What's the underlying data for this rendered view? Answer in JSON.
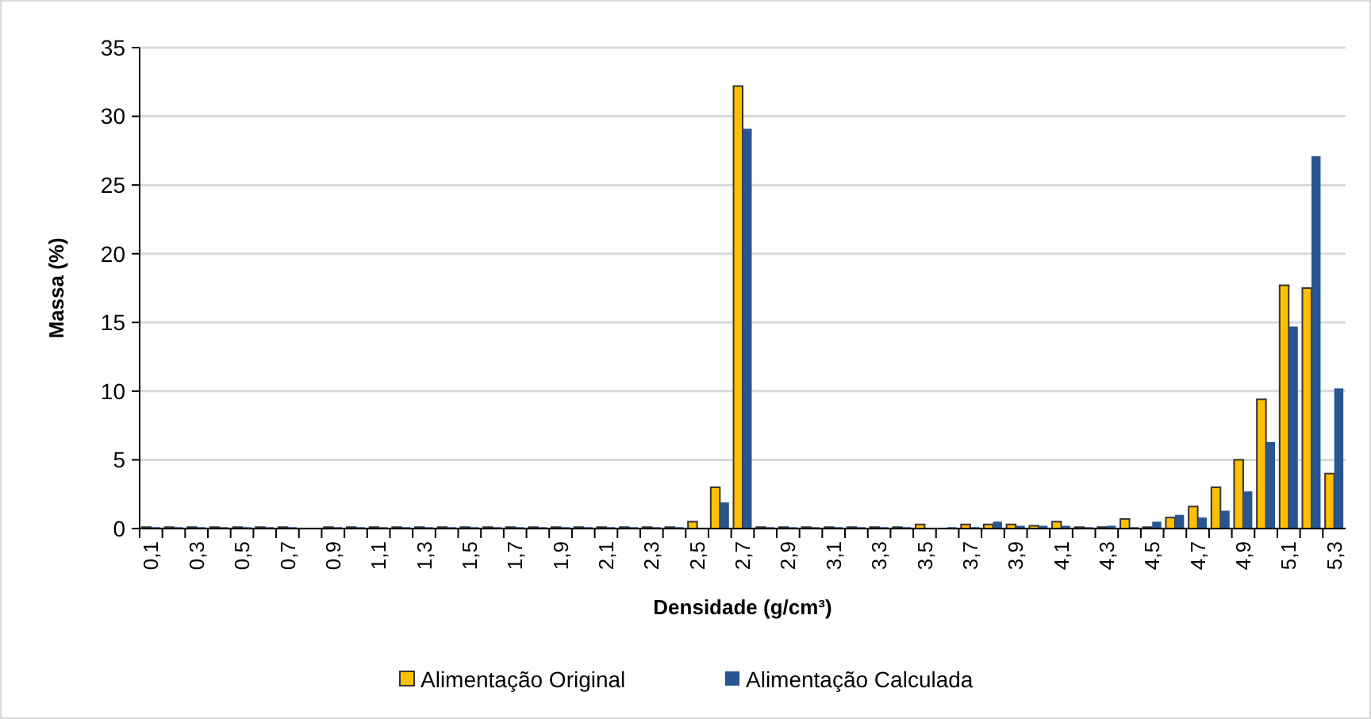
{
  "chart_data": {
    "type": "bar",
    "xlabel": "Densidade (g/cm³)",
    "ylabel": "Massa (%)",
    "categories": [
      "0,1",
      null,
      "0,3",
      null,
      "0,5",
      null,
      "0,7",
      null,
      "0,9",
      null,
      "1,1",
      null,
      "1,3",
      null,
      "1,5",
      null,
      "1,7",
      null,
      "1,9",
      null,
      "2,1",
      null,
      "2,3",
      null,
      "2,5",
      null,
      "2,7",
      null,
      "2,9",
      null,
      "3,1",
      null,
      "3,3",
      null,
      "3,5",
      null,
      "3,7",
      null,
      "3,9",
      null,
      "4,1",
      null,
      "4,3",
      null,
      "4,5",
      null,
      "4,7",
      null,
      "4,9",
      null,
      "5,1",
      null,
      "5,3"
    ],
    "series": [
      {
        "name": "Alimentação Original",
        "color": "#ffc000",
        "values": [
          0.1,
          0.1,
          0.1,
          0.1,
          0.1,
          0.1,
          0.1,
          0,
          0.1,
          0.1,
          0.1,
          0.1,
          0.1,
          0.1,
          0.1,
          0.1,
          0.1,
          0.1,
          0.1,
          0.1,
          0.1,
          0.1,
          0.1,
          0.1,
          0.5,
          3.0,
          32.2,
          0.1,
          0.1,
          0.1,
          0.1,
          0.1,
          0.1,
          0.1,
          0.3,
          0,
          0.3,
          0.3,
          0.3,
          0.2,
          0.5,
          0.1,
          0.1,
          0.7,
          0.1,
          0.8,
          1.6,
          3.0,
          5.0,
          9.4,
          17.7,
          17.5,
          4.0
        ]
      },
      {
        "name": "Alimentação Calculada",
        "color": "#2a5590",
        "values": [
          0.1,
          0.1,
          0.1,
          0.1,
          0.1,
          0.1,
          0.1,
          0,
          0.1,
          0.1,
          0.1,
          0.1,
          0.1,
          0.1,
          0.1,
          0.1,
          0.1,
          0.1,
          0.1,
          0.1,
          0.1,
          0.1,
          0.1,
          0.1,
          0,
          1.9,
          29.1,
          0.1,
          0.1,
          0.1,
          0.1,
          0.1,
          0.1,
          0.1,
          0,
          0.1,
          0.1,
          0.5,
          0.2,
          0.2,
          0.2,
          0.1,
          0.2,
          0.1,
          0.5,
          1.0,
          0.8,
          1.3,
          2.7,
          6.3,
          14.7,
          27.1,
          10.2
        ]
      }
    ],
    "ylim": [
      0,
      35
    ],
    "yticks": [
      0,
      5,
      10,
      15,
      20,
      25,
      30,
      35
    ],
    "grid": "y",
    "legend": "bottom"
  }
}
